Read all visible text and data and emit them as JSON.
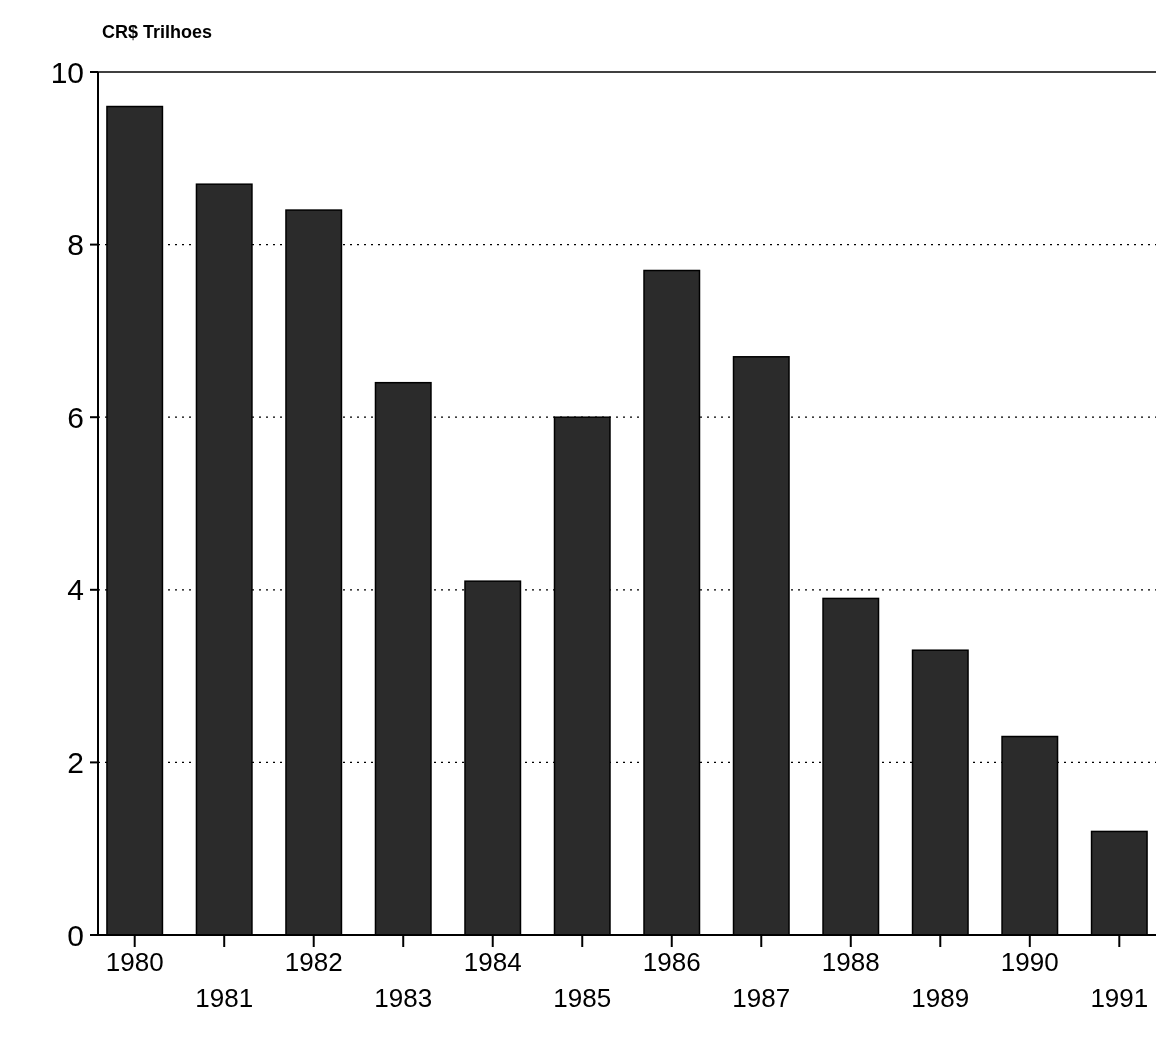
{
  "chart_data": {
    "type": "bar",
    "ylabel": "CR$ Trilhoes",
    "categories": [
      "1980",
      "1981",
      "1982",
      "1983",
      "1984",
      "1985",
      "1986",
      "1987",
      "1988",
      "1989",
      "1990",
      "1991"
    ],
    "values": [
      9.6,
      8.7,
      8.4,
      6.4,
      4.1,
      6.0,
      7.7,
      6.7,
      3.9,
      3.3,
      2.3,
      1.2
    ],
    "color": "#2b2b2b",
    "ylim": [
      0,
      10
    ],
    "yticks": [
      0,
      2,
      4,
      6,
      8,
      10
    ],
    "grid": "y"
  }
}
